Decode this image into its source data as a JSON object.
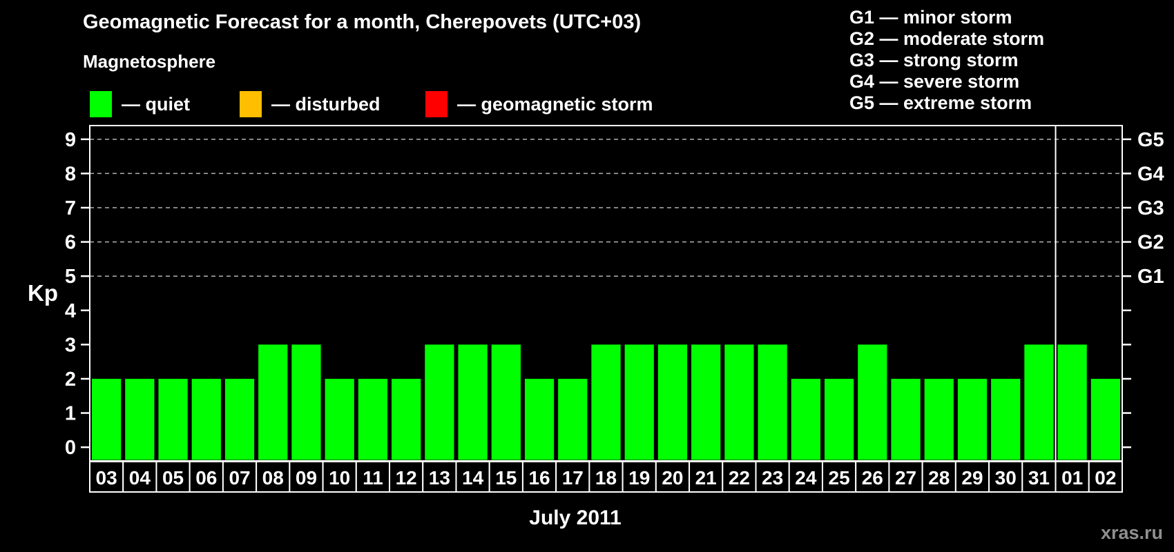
{
  "header": {
    "title": "Geomagnetic Forecast for a month, Cherepovets (UTC+03)",
    "subtitle": "Magnetosphere"
  },
  "legend": {
    "items": [
      {
        "label": "— quiet",
        "color": "#00ff00"
      },
      {
        "label": "— disturbed",
        "color": "#ffbe00"
      },
      {
        "label": "— geomagnetic storm",
        "color": "#ff0000"
      }
    ]
  },
  "storm_scale": {
    "lines": [
      "G1 — minor storm",
      "G2 — moderate storm",
      "G3 — strong storm",
      "G4 — severe storm",
      "G5 — extreme storm"
    ]
  },
  "footer": {
    "month_label": "July 2011",
    "watermark": "xras.ru"
  },
  "chart_data": {
    "type": "bar",
    "title": "Geomagnetic Forecast for a month, Cherepovets (UTC+03)",
    "ylabel": "Kp",
    "categories": [
      "03",
      "04",
      "05",
      "06",
      "07",
      "08",
      "09",
      "10",
      "11",
      "12",
      "13",
      "14",
      "15",
      "16",
      "17",
      "18",
      "19",
      "20",
      "21",
      "22",
      "23",
      "24",
      "25",
      "26",
      "27",
      "28",
      "29",
      "30",
      "31",
      "01",
      "02"
    ],
    "values": [
      2,
      2,
      2,
      2,
      2,
      3,
      3,
      2,
      2,
      2,
      3,
      3,
      3,
      2,
      2,
      3,
      3,
      3,
      3,
      3,
      3,
      2,
      2,
      3,
      2,
      2,
      2,
      2,
      3,
      3,
      2
    ],
    "bar_color": "#00ff00",
    "ylim": [
      -0.4,
      9.4
    ],
    "yticks": [
      0,
      1,
      2,
      3,
      4,
      5,
      6,
      7,
      8,
      9
    ],
    "grid_levels": [
      5,
      6,
      7,
      8,
      9
    ],
    "grid_style": "dashed",
    "grid_color": "#b3b3b3",
    "right_axis": {
      "labels": [
        {
          "kp": 5,
          "label": "G1"
        },
        {
          "kp": 6,
          "label": "G2"
        },
        {
          "kp": 7,
          "label": "G3"
        },
        {
          "kp": 8,
          "label": "G4"
        },
        {
          "kp": 9,
          "label": "G5"
        }
      ]
    },
    "month_separator_after_index": 28,
    "x_month_label": "July 2011"
  }
}
